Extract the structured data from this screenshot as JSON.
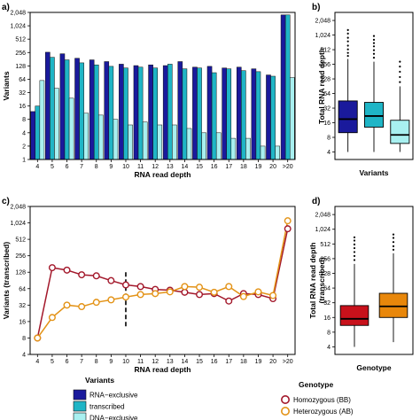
{
  "chart_data": [
    {
      "panel_label": "a)",
      "type": "bar",
      "xlabel": "RNA read depth",
      "ylabel": "Variants",
      "scale": "log2",
      "yticks": [
        "1",
        "2",
        "4",
        "8",
        "16",
        "32",
        "64",
        "128",
        "256",
        "512",
        "1,024",
        "2,048"
      ],
      "ytick_values": [
        1,
        2,
        4,
        8,
        16,
        32,
        64,
        128,
        256,
        512,
        1024,
        2048
      ],
      "ylim": [
        1,
        2048
      ],
      "categories": [
        "4",
        "5",
        "6",
        "7",
        "8",
        "9",
        "10",
        "11",
        "12",
        "13",
        "14",
        "15",
        "16",
        "17",
        "18",
        "19",
        "20",
        ">20"
      ],
      "series": [
        {
          "name": "RNA−exclusive",
          "color": "#1a1a9c",
          "values": [
            12,
            260,
            240,
            190,
            175,
            160,
            140,
            130,
            135,
            130,
            160,
            120,
            125,
            115,
            120,
            110,
            80,
            1800
          ]
        },
        {
          "name": "transcribed",
          "color": "#1fb5c6",
          "values": [
            16,
            200,
            175,
            150,
            135,
            125,
            115,
            120,
            115,
            140,
            110,
            115,
            90,
            110,
            100,
            95,
            75,
            1800
          ]
        },
        {
          "name": "DNA−exclusive",
          "color": "#a8f0f0",
          "values": [
            60,
            40,
            24,
            11,
            10,
            8,
            6,
            7,
            6,
            6,
            5,
            4,
            4,
            3,
            3,
            2,
            2,
            70
          ]
        }
      ]
    },
    {
      "panel_label": "b)",
      "type": "box",
      "xlabel": "Variants",
      "ylabel": "Total RNA read depth",
      "scale": "log2",
      "yticks": [
        "4",
        "8",
        "16",
        "32",
        "64",
        "128",
        "256",
        "512",
        "1,024",
        "2,048"
      ],
      "ytick_values": [
        4,
        8,
        16,
        32,
        64,
        128,
        256,
        512,
        1024,
        2048
      ],
      "ylim": [
        2.8,
        3000
      ],
      "boxes": [
        {
          "color": "#1a1a9c",
          "q1": 10,
          "median": 19,
          "q3": 45,
          "wlo": 4,
          "whi": 330,
          "outliers": [
            380,
            440,
            520,
            620,
            760,
            900,
            1100,
            1300
          ]
        },
        {
          "color": "#1fb5c6",
          "q1": 13,
          "median": 22,
          "q3": 42,
          "wlo": 4,
          "whi": 290,
          "outliers": [
            350,
            420,
            500,
            600,
            700,
            820,
            980
          ]
        },
        {
          "color": "#a8f0f0",
          "q1": 6,
          "median": 9,
          "q3": 18,
          "wlo": 4,
          "whi": 90,
          "outliers": [
            110,
            140,
            180,
            230,
            290
          ]
        }
      ]
    },
    {
      "panel_label": "c)",
      "type": "line",
      "xlabel": "RNA read depth",
      "ylabel": "Variants (transcribed)",
      "scale": "log2",
      "yticks": [
        "4",
        "8",
        "16",
        "32",
        "64",
        "128",
        "256",
        "512",
        "1,024",
        "2,048"
      ],
      "ytick_values": [
        4,
        8,
        16,
        32,
        64,
        128,
        256,
        512,
        1024,
        2048
      ],
      "ylim": [
        4,
        2048
      ],
      "categories": [
        "4",
        "5",
        "6",
        "7",
        "8",
        "9",
        "10",
        "11",
        "12",
        "13",
        "14",
        "15",
        "16",
        "17",
        "18",
        "19",
        "20",
        ">20"
      ],
      "vline_at": "10",
      "series": [
        {
          "name": "Homozygous (BB)",
          "color": "#a3182b",
          "values": [
            8,
            155,
            140,
            115,
            110,
            90,
            75,
            70,
            62,
            60,
            55,
            50,
            52,
            38,
            52,
            50,
            42,
            800
          ]
        },
        {
          "name": "Heterozygous (AB)",
          "color": "#e39317",
          "values": [
            8,
            19,
            32,
            30,
            36,
            40,
            45,
            50,
            52,
            56,
            70,
            68,
            55,
            70,
            46,
            56,
            48,
            1120
          ]
        }
      ]
    },
    {
      "panel_label": "d)",
      "type": "box",
      "xlabel": "Genotype",
      "ylabel": "Total RNA read depth (transcribed)",
      "scale": "log2",
      "yticks": [
        "4",
        "8",
        "16",
        "32",
        "64",
        "128",
        "256",
        "512",
        "1,024",
        "2,048"
      ],
      "ytick_values": [
        4,
        8,
        16,
        32,
        64,
        128,
        256,
        512,
        1024,
        2048
      ],
      "ylim": [
        2.8,
        3000
      ],
      "boxes": [
        {
          "color": "#c8111b",
          "q1": 11,
          "median": 15,
          "q3": 28,
          "wlo": 4,
          "whi": 200,
          "outliers": [
            240,
            290,
            350,
            420,
            500,
            600,
            700
          ]
        },
        {
          "color": "#e8870b",
          "q1": 16,
          "median": 27,
          "q3": 50,
          "wlo": 5,
          "whi": 330,
          "outliers": [
            390,
            460,
            560,
            680,
            800
          ]
        }
      ]
    }
  ],
  "legend_variants": {
    "title": "Variants",
    "items": [
      {
        "label": "RNA−exclusive",
        "color": "#1a1a9c"
      },
      {
        "label": "transcribed",
        "color": "#1fb5c6"
      },
      {
        "label": "DNA−exclusive",
        "color": "#a8f0f0"
      }
    ]
  },
  "legend_genotype": {
    "title": "Genotype",
    "items": [
      {
        "label": "Homozygous (BB)",
        "color": "#a3182b"
      },
      {
        "label": "Heterozygous (AB)",
        "color": "#e39317"
      }
    ]
  }
}
